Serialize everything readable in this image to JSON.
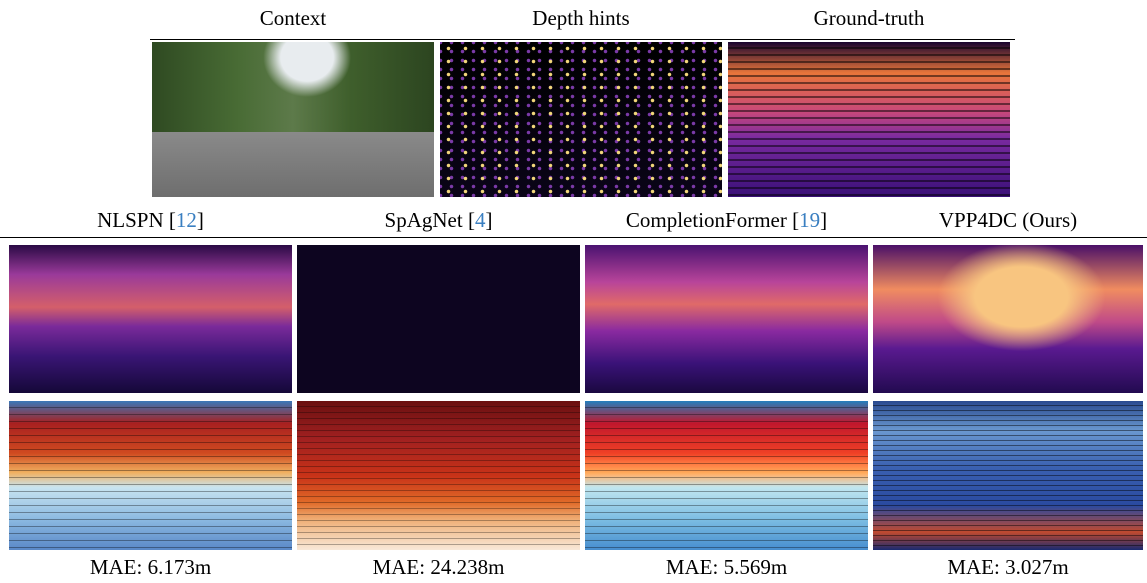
{
  "top": {
    "labels": [
      "Context",
      "Depth hints",
      "Ground-truth"
    ]
  },
  "methods": [
    {
      "name": "NLSPN",
      "cite": "[12]",
      "mae": "MAE: 6.173m"
    },
    {
      "name": "SpAgNet",
      "cite": "[4]",
      "mae": "MAE: 24.238m"
    },
    {
      "name": "CompletionFormer",
      "cite": "[19]",
      "mae": "MAE: 5.569m"
    },
    {
      "name": "VPP4DC (Ours)",
      "cite": null,
      "mae": "MAE: 3.027m"
    }
  ]
}
